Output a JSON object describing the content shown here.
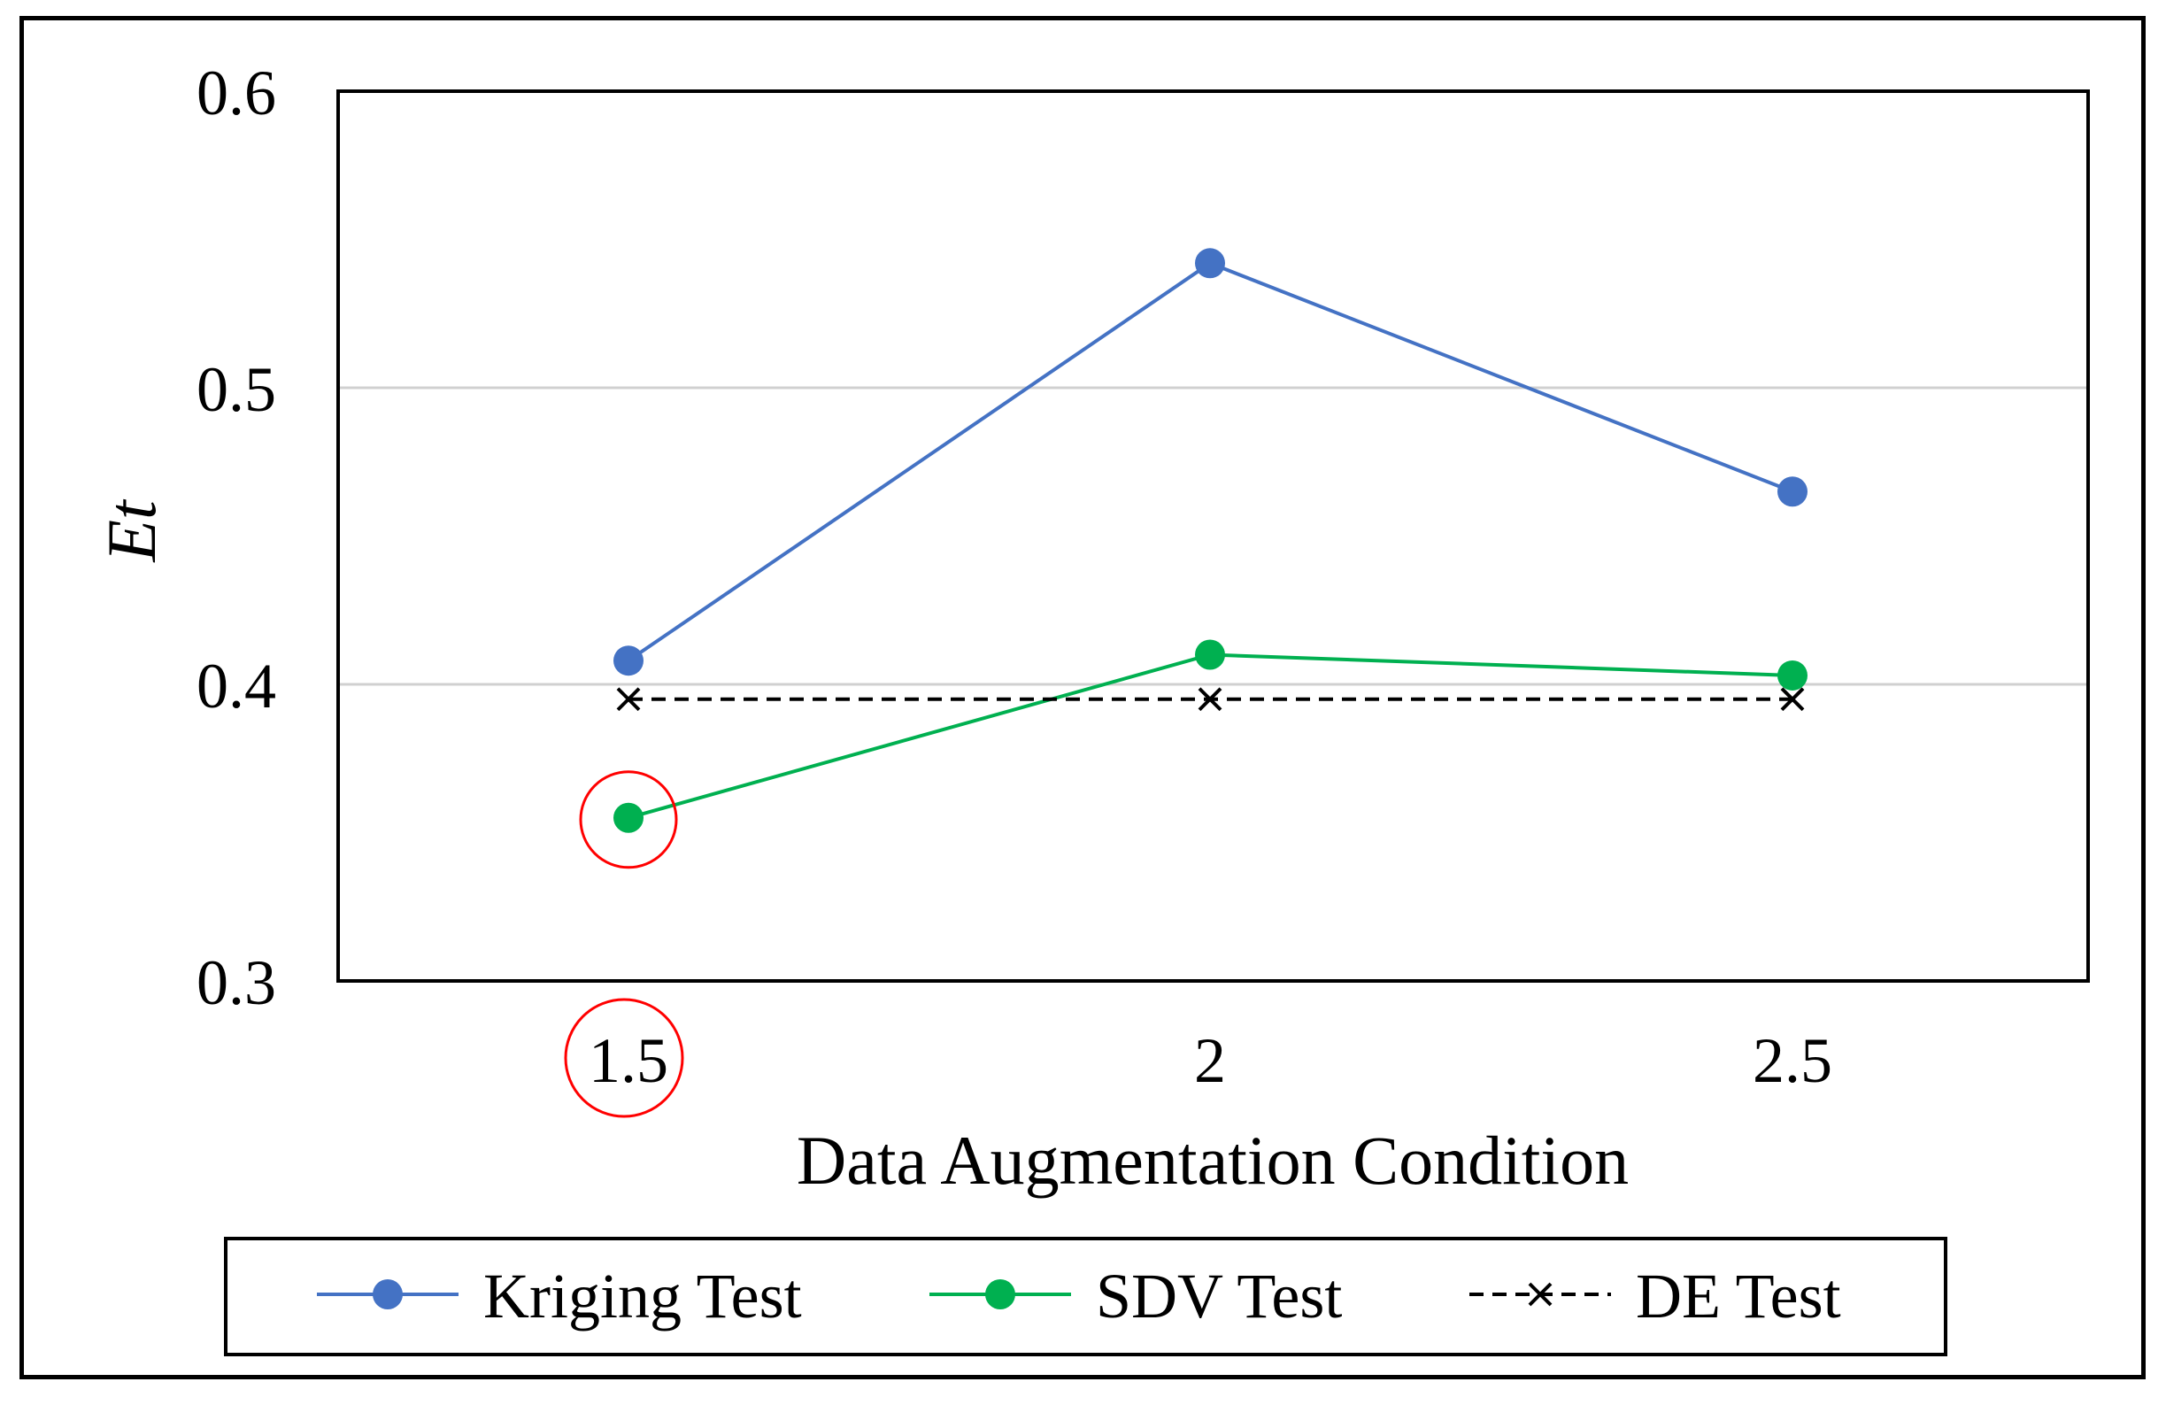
{
  "chart_data": {
    "type": "line",
    "title": "",
    "xlabel": "Data Augmentation Condition",
    "ylabel": "Et",
    "categories": [
      "1.5",
      "2",
      "2.5"
    ],
    "yticks": [
      "0.3",
      "0.4",
      "0.5",
      "0.6"
    ],
    "ylim": [
      0.3,
      0.6
    ],
    "grid": true,
    "legend_position": "bottom",
    "series": [
      {
        "name": "Kriging Test",
        "values": [
          0.408,
          0.542,
          0.465
        ],
        "color": "#4472C4",
        "marker": "circle",
        "line": "solid"
      },
      {
        "name": "SDV Test",
        "values": [
          0.355,
          0.41,
          0.403
        ],
        "color": "#00B050",
        "marker": "circle",
        "line": "solid"
      },
      {
        "name": "DE Test",
        "values": [
          0.395,
          0.395,
          0.395
        ],
        "color": "#000000",
        "marker": "x",
        "line": "dashed"
      }
    ],
    "annotations": [
      {
        "type": "circle",
        "target": "SDV Test point at 1.5",
        "color": "#FF0000"
      },
      {
        "type": "circle",
        "target": "x tick label 1.5",
        "color": "#FF0000"
      }
    ]
  }
}
